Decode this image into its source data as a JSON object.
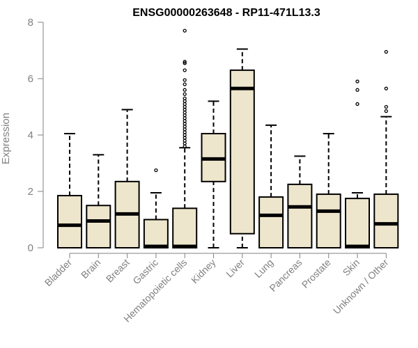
{
  "chart_data": {
    "type": "boxplot",
    "title": "ENSG00000263648 - RP11-471L13.3",
    "xlabel": "",
    "ylabel": "Expression",
    "ylim": [
      0,
      8
    ],
    "yticks": [
      0,
      2,
      4,
      6,
      8
    ],
    "box_fill": "#ede6cc",
    "categories": [
      "Bladder",
      "Brain",
      "Breast",
      "Gastric",
      "Hematopoietic cells",
      "Kidney",
      "Liver",
      "Lung",
      "Pancreas",
      "Prostate",
      "Skin",
      "Unknown / Other"
    ],
    "boxes": [
      {
        "name": "Bladder",
        "min": 0,
        "q1": 0,
        "median": 0.8,
        "q3": 1.85,
        "max": 4.05,
        "outliers": []
      },
      {
        "name": "Brain",
        "min": 0,
        "q1": 0,
        "median": 0.95,
        "q3": 1.5,
        "max": 3.3,
        "outliers": []
      },
      {
        "name": "Breast",
        "min": 0,
        "q1": 0,
        "median": 1.2,
        "q3": 2.35,
        "max": 4.9,
        "outliers": []
      },
      {
        "name": "Gastric",
        "min": 0,
        "q1": 0,
        "median": 0,
        "q3": 1.0,
        "max": 1.95,
        "outliers": [
          2.75
        ]
      },
      {
        "name": "Hematopoietic cells",
        "min": 0,
        "q1": 0,
        "median": 0,
        "q3": 1.4,
        "max": 3.55,
        "outliers": [
          3.6,
          3.7,
          3.8,
          3.9,
          4.0,
          4.1,
          4.2,
          4.3,
          4.4,
          4.5,
          4.6,
          4.7,
          4.8,
          4.9,
          5.0,
          5.1,
          5.2,
          5.3,
          5.45,
          5.6,
          5.8,
          5.95,
          6.3,
          6.55,
          6.6,
          7.7
        ]
      },
      {
        "name": "Kidney",
        "min": 0,
        "q1": 2.35,
        "median": 3.15,
        "q3": 4.05,
        "max": 5.2,
        "outliers": []
      },
      {
        "name": "Liver",
        "min": 0,
        "q1": 0.5,
        "median": 5.65,
        "q3": 6.3,
        "max": 7.05,
        "outliers": []
      },
      {
        "name": "Lung",
        "min": 0,
        "q1": 0,
        "median": 1.15,
        "q3": 1.8,
        "max": 4.35,
        "outliers": []
      },
      {
        "name": "Pancreas",
        "min": 0,
        "q1": 0,
        "median": 1.45,
        "q3": 2.25,
        "max": 3.25,
        "outliers": []
      },
      {
        "name": "Prostate",
        "min": 0,
        "q1": 0,
        "median": 1.3,
        "q3": 1.9,
        "max": 4.05,
        "outliers": []
      },
      {
        "name": "Skin",
        "min": 0,
        "q1": 0,
        "median": 0,
        "q3": 1.75,
        "max": 1.95,
        "outliers": [
          5.1,
          5.6,
          5.9
        ]
      },
      {
        "name": "Unknown / Other",
        "min": 0,
        "q1": 0,
        "median": 0.85,
        "q3": 1.9,
        "max": 4.65,
        "outliers": [
          4.85,
          5.0,
          5.65,
          6.95
        ]
      }
    ]
  }
}
